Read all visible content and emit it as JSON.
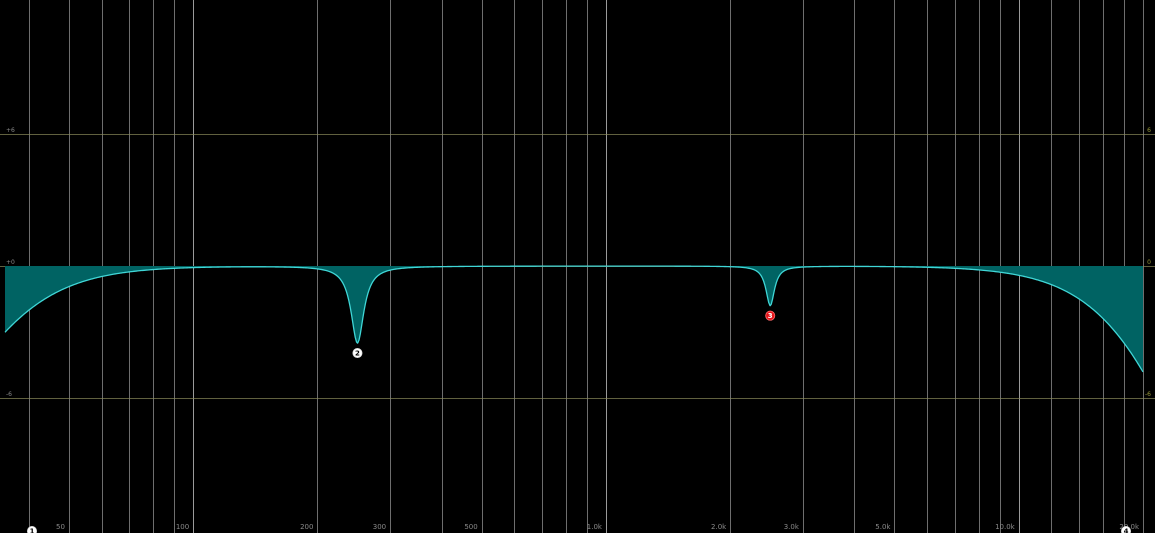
{
  "display": {
    "background": "#000000",
    "grid_color": "#6e6e6e",
    "grid_color_major": "#9a9a9a",
    "db_line_color": "#8a8a5a",
    "curve_line_color": "#3fd6d6",
    "curve_fill_color": "#006363"
  },
  "freq_axis": {
    "min_hz": 35,
    "max_hz": 20000,
    "scale": "log",
    "labels": [
      {
        "hz": 50,
        "text": "50"
      },
      {
        "hz": 100,
        "text": "100"
      },
      {
        "hz": 200,
        "text": "200"
      },
      {
        "hz": 300,
        "text": "300"
      },
      {
        "hz": 500,
        "text": "500"
      },
      {
        "hz": 1000,
        "text": "1.0k"
      },
      {
        "hz": 2000,
        "text": "2.0k"
      },
      {
        "hz": 3000,
        "text": "3.0k"
      },
      {
        "hz": 5000,
        "text": "5.0k"
      },
      {
        "hz": 10000,
        "text": "10.0k"
      },
      {
        "hz": 20000,
        "text": "20.0k"
      }
    ],
    "gridlines_hz": [
      40,
      50,
      60,
      70,
      80,
      90,
      100,
      200,
      300,
      400,
      500,
      600,
      700,
      800,
      900,
      1000,
      2000,
      3000,
      4000,
      5000,
      6000,
      7000,
      8000,
      9000,
      10000,
      12000,
      14000,
      16000,
      18000,
      20000
    ]
  },
  "gain_axis": {
    "labels_left": [
      {
        "db": 6,
        "text": "+6"
      },
      {
        "db": 0,
        "text": "+0"
      },
      {
        "db": -6,
        "text": "-6"
      }
    ],
    "labels_right": [
      {
        "db": 6,
        "text": "6"
      },
      {
        "db": 0,
        "text": "0"
      },
      {
        "db": -6,
        "text": "-6"
      }
    ]
  },
  "bands": [
    {
      "id": "1",
      "label": "1",
      "type": "highpass",
      "freq_hz": 35,
      "color": "#ffffff",
      "selected": false
    },
    {
      "id": "2",
      "label": "2",
      "type": "notch",
      "freq_hz": 250,
      "gain_db": -3.5,
      "q": 8,
      "color": "#ffffff",
      "selected": false
    },
    {
      "id": "3",
      "label": "3",
      "type": "notch",
      "freq_hz": 2500,
      "gain_db": -1.8,
      "q": 12,
      "color": "#e8161c",
      "selected": true
    },
    {
      "id": "4",
      "label": "4",
      "type": "lowpass",
      "freq_hz": 20000,
      "color": "#ffffff",
      "selected": false
    }
  ]
}
